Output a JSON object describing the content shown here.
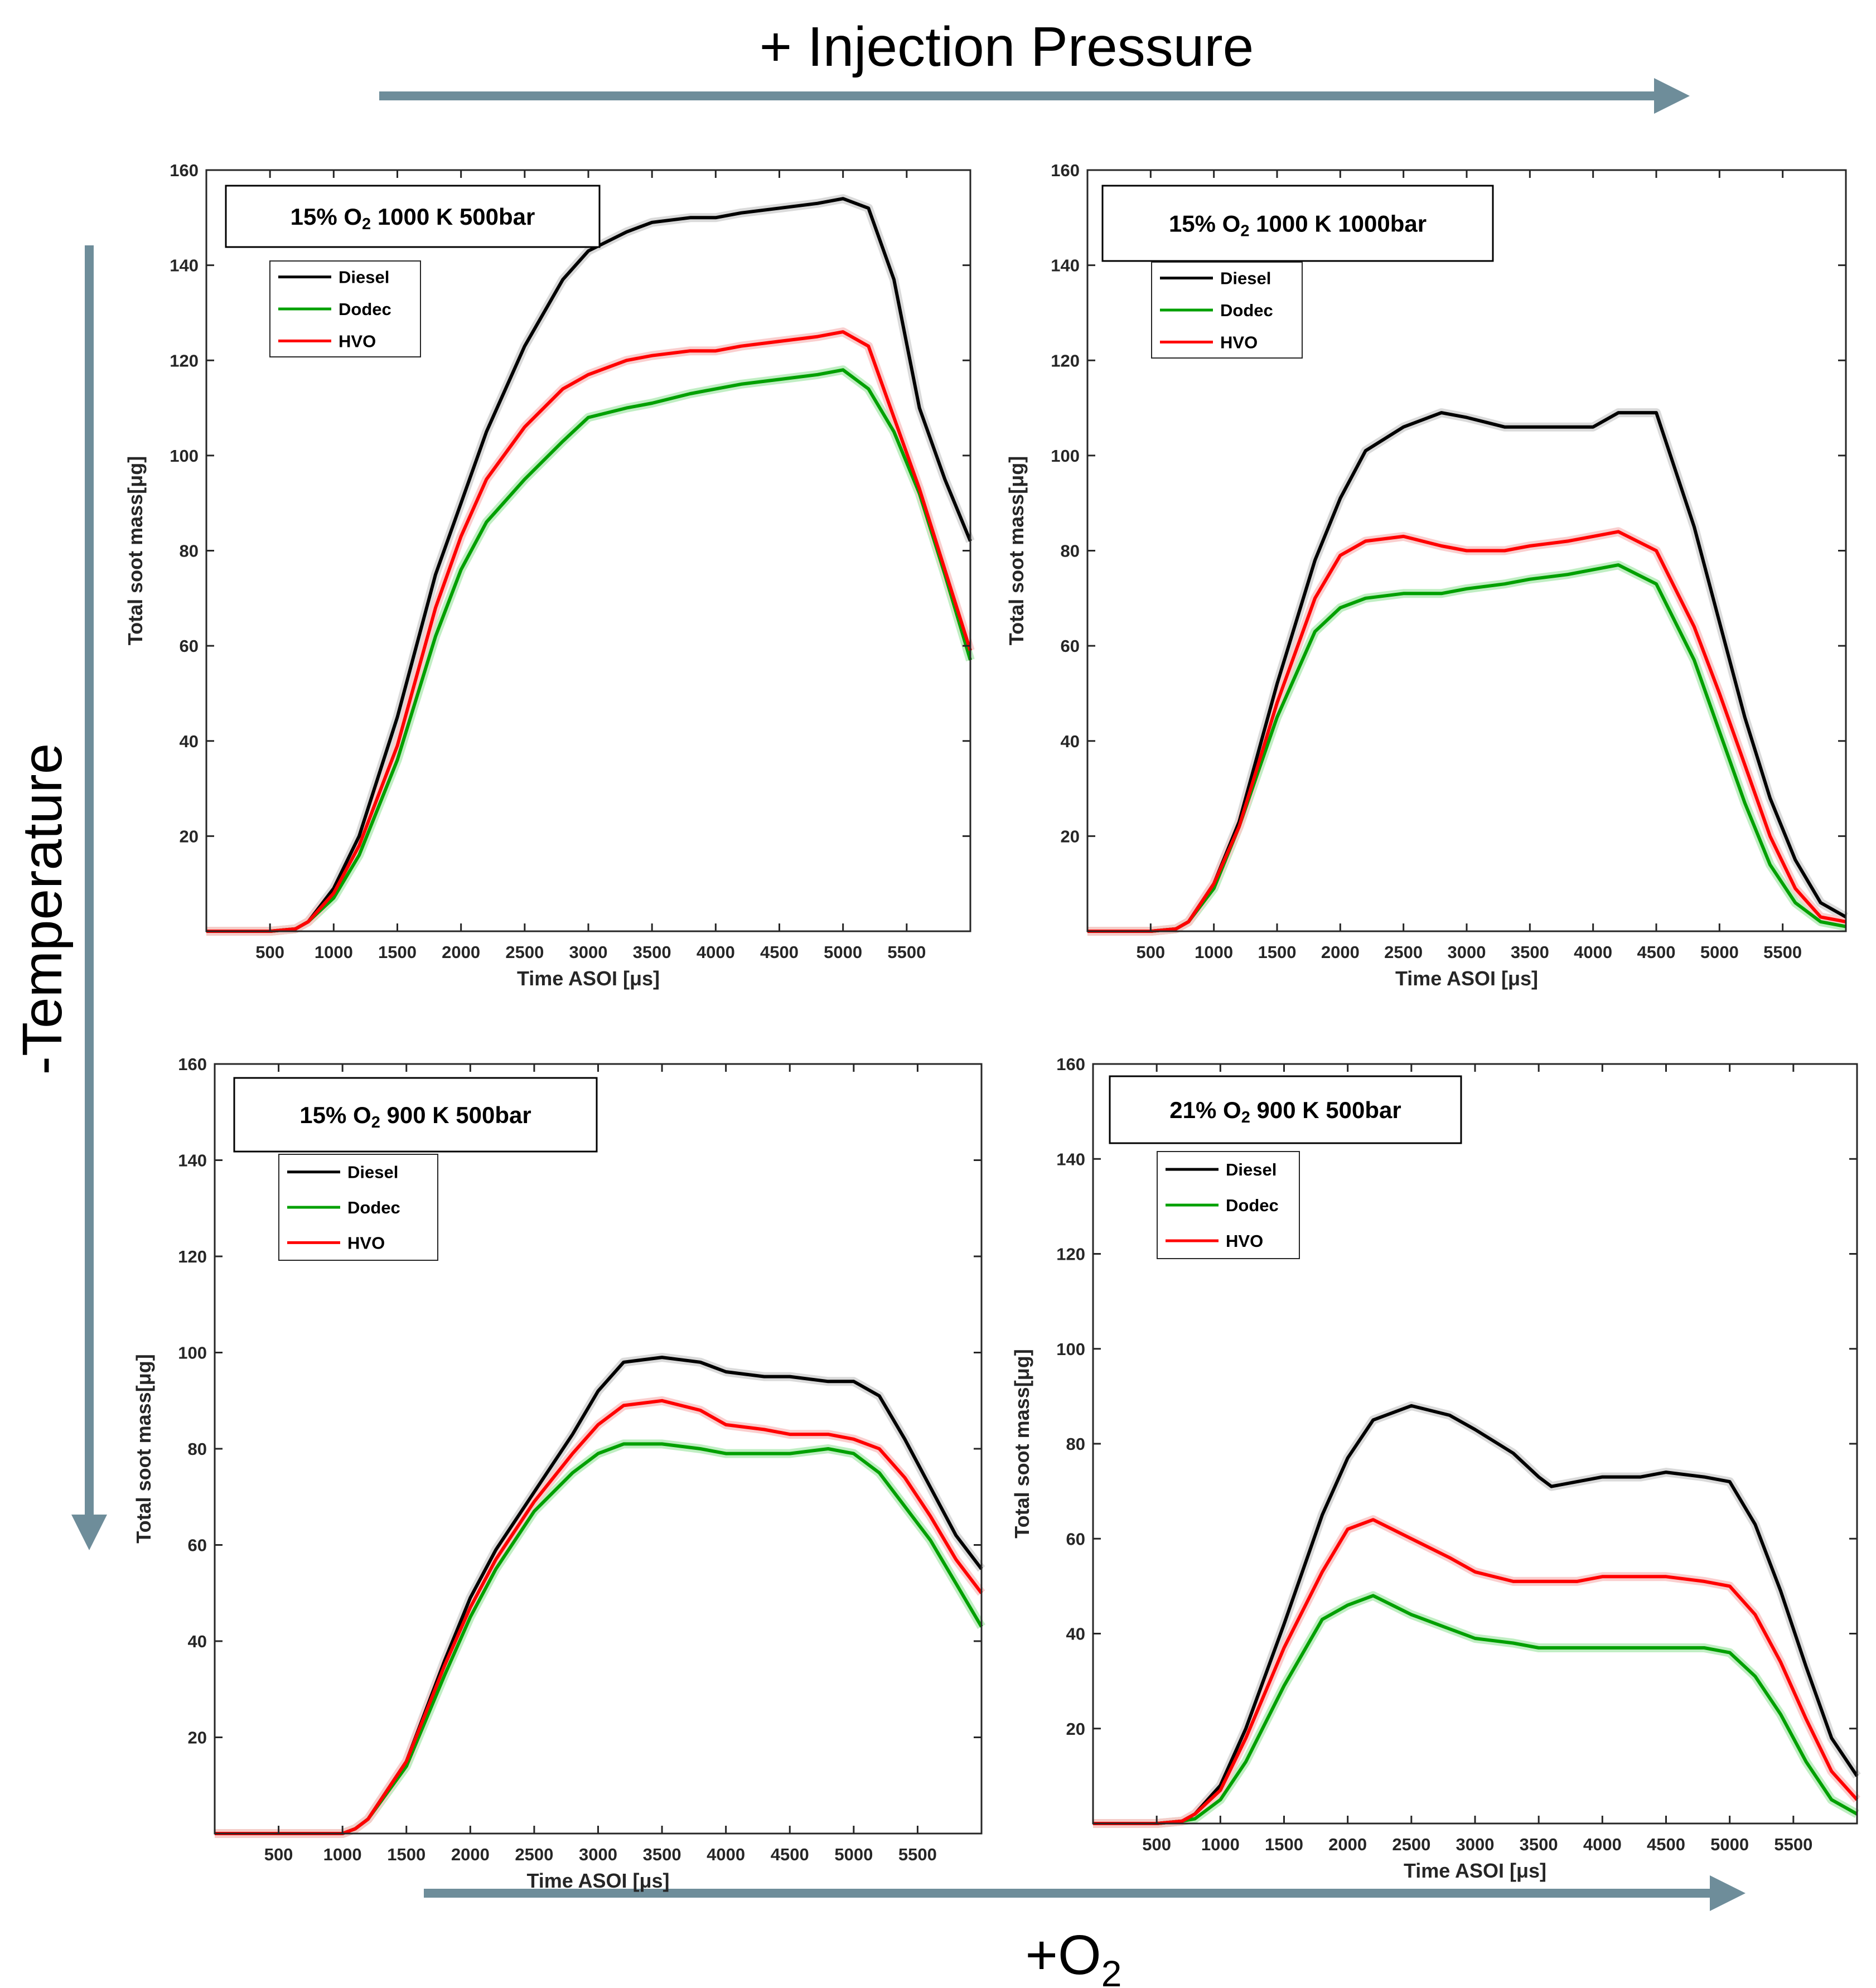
{
  "figure": {
    "top_label": "+ Injection Pressure",
    "left_label": "-Temperature",
    "bottom_label_prefix": "+O",
    "bottom_label_sub": "2",
    "arrow_color": "#6E8D9A"
  },
  "chart_data": [
    {
      "type": "line",
      "condition": {
        "pct": "15%",
        "o2_main": "O",
        "o2_sub": "2",
        "rest": "1000 K 500bar"
      },
      "xlabel": "Time ASOI [μs]",
      "ylabel": "Total soot mass[μg]",
      "xlim": [
        0,
        6000
      ],
      "ylim": [
        0,
        160
      ],
      "xticks": [
        500,
        1000,
        1500,
        2000,
        2500,
        3000,
        3500,
        4000,
        4500,
        5000,
        5500
      ],
      "yticks": [
        20,
        40,
        60,
        80,
        100,
        120,
        140,
        160
      ],
      "legend": [
        "Diesel",
        "Dodec",
        "HVO"
      ],
      "series": [
        {
          "name": "Diesel",
          "color": "#000000",
          "x": [
            0,
            500,
            700,
            800,
            1000,
            1200,
            1500,
            1800,
            2000,
            2200,
            2500,
            2800,
            3000,
            3300,
            3500,
            3800,
            4000,
            4200,
            4500,
            4800,
            5000,
            5200,
            5400,
            5600,
            5800,
            6000
          ],
          "y": [
            0,
            0,
            0.5,
            2,
            9,
            20,
            45,
            75,
            90,
            105,
            123,
            137,
            143,
            147,
            149,
            150,
            150,
            151,
            152,
            153,
            154,
            152,
            137,
            110,
            95,
            82
          ]
        },
        {
          "name": "Dodec",
          "color": "#00A000",
          "x": [
            0,
            500,
            700,
            800,
            1000,
            1200,
            1500,
            1800,
            2000,
            2200,
            2500,
            2800,
            3000,
            3300,
            3500,
            3800,
            4000,
            4200,
            4500,
            4800,
            5000,
            5200,
            5400,
            5600,
            5800,
            6000
          ],
          "y": [
            0,
            0,
            0.5,
            2,
            7,
            16,
            36,
            62,
            76,
            86,
            95,
            103,
            108,
            110,
            111,
            113,
            114,
            115,
            116,
            117,
            118,
            114,
            105,
            92,
            75,
            57
          ]
        },
        {
          "name": "HVO",
          "color": "#FF0000",
          "x": [
            0,
            500,
            700,
            800,
            1000,
            1200,
            1500,
            1800,
            2000,
            2200,
            2500,
            2800,
            3000,
            3300,
            3500,
            3800,
            4000,
            4200,
            4500,
            4800,
            5000,
            5200,
            5400,
            5600,
            5800,
            6000
          ],
          "y": [
            0,
            0,
            0.5,
            2,
            8,
            18,
            39,
            68,
            83,
            95,
            106,
            114,
            117,
            120,
            121,
            122,
            122,
            123,
            124,
            125,
            126,
            123,
            108,
            93,
            76,
            59
          ]
        }
      ]
    },
    {
      "type": "line",
      "condition": {
        "pct": "15%",
        "o2_main": "O",
        "o2_sub": "2",
        "rest": "1000 K 1000bar"
      },
      "xlabel": "Time ASOI [μs]",
      "ylabel": "Total soot mass[μg]",
      "xlim": [
        0,
        6000
      ],
      "ylim": [
        0,
        160
      ],
      "xticks": [
        500,
        1000,
        1500,
        2000,
        2500,
        3000,
        3500,
        4000,
        4500,
        5000,
        5500
      ],
      "yticks": [
        20,
        40,
        60,
        80,
        100,
        120,
        140,
        160
      ],
      "legend": [
        "Diesel",
        "Dodec",
        "HVO"
      ],
      "series": [
        {
          "name": "Diesel",
          "color": "#000000",
          "x": [
            0,
            500,
            700,
            800,
            1000,
            1200,
            1500,
            1800,
            2000,
            2200,
            2500,
            2800,
            3000,
            3300,
            3500,
            3800,
            4000,
            4200,
            4500,
            4800,
            5000,
            5200,
            5400,
            5600,
            5800,
            6000
          ],
          "y": [
            0,
            0,
            0.5,
            2,
            10,
            23,
            52,
            78,
            91,
            101,
            106,
            109,
            108,
            106,
            106,
            106,
            106,
            109,
            109,
            85,
            65,
            45,
            28,
            15,
            6,
            3
          ]
        },
        {
          "name": "Dodec",
          "color": "#00A000",
          "x": [
            0,
            500,
            700,
            800,
            1000,
            1200,
            1500,
            1800,
            2000,
            2200,
            2500,
            2800,
            3000,
            3300,
            3500,
            3800,
            4000,
            4200,
            4500,
            4800,
            5000,
            5200,
            5400,
            5600,
            5800,
            6000
          ],
          "y": [
            0,
            0,
            0.5,
            2,
            9,
            22,
            45,
            63,
            68,
            70,
            71,
            71,
            72,
            73,
            74,
            75,
            76,
            77,
            73,
            57,
            42,
            27,
            14,
            6,
            2,
            1
          ]
        },
        {
          "name": "HVO",
          "color": "#FF0000",
          "x": [
            0,
            500,
            700,
            800,
            1000,
            1200,
            1500,
            1800,
            2000,
            2200,
            2500,
            2800,
            3000,
            3300,
            3500,
            3800,
            4000,
            4200,
            4500,
            4800,
            5000,
            5200,
            5400,
            5600,
            5800,
            6000
          ],
          "y": [
            0,
            0,
            0.5,
            2,
            10,
            22,
            48,
            70,
            79,
            82,
            83,
            81,
            80,
            80,
            81,
            82,
            83,
            84,
            80,
            64,
            50,
            35,
            20,
            9,
            3,
            2
          ]
        }
      ]
    },
    {
      "type": "line",
      "condition": {
        "pct": "15%",
        "o2_main": "O",
        "o2_sub": "2",
        "rest": "900 K 500bar"
      },
      "xlabel": "Time ASOI [μs]",
      "ylabel": "Total soot mass[μg]",
      "xlim": [
        0,
        6000
      ],
      "ylim": [
        0,
        160
      ],
      "xticks": [
        500,
        1000,
        1500,
        2000,
        2500,
        3000,
        3500,
        4000,
        4500,
        5000,
        5500
      ],
      "yticks": [
        20,
        40,
        60,
        80,
        100,
        120,
        140,
        160
      ],
      "legend": [
        "Diesel",
        "Dodec",
        "HVO"
      ],
      "series": [
        {
          "name": "Diesel",
          "color": "#000000",
          "x": [
            0,
            500,
            1000,
            1100,
            1200,
            1500,
            1800,
            2000,
            2200,
            2500,
            2800,
            3000,
            3200,
            3500,
            3800,
            4000,
            4300,
            4500,
            4800,
            5000,
            5200,
            5400,
            5600,
            5800,
            6000
          ],
          "y": [
            0,
            0,
            0,
            1,
            3,
            15,
            36,
            49,
            59,
            71,
            83,
            92,
            98,
            99,
            98,
            96,
            95,
            95,
            94,
            94,
            91,
            82,
            72,
            62,
            55
          ]
        },
        {
          "name": "Dodec",
          "color": "#00A000",
          "x": [
            0,
            500,
            1000,
            1100,
            1200,
            1500,
            1800,
            2000,
            2200,
            2500,
            2800,
            3000,
            3200,
            3500,
            3800,
            4000,
            4300,
            4500,
            4800,
            5000,
            5200,
            5400,
            5600,
            5800,
            6000
          ],
          "y": [
            0,
            0,
            0,
            1,
            3,
            14,
            33,
            45,
            55,
            67,
            75,
            79,
            81,
            81,
            80,
            79,
            79,
            79,
            80,
            79,
            75,
            68,
            61,
            52,
            43
          ]
        },
        {
          "name": "HVO",
          "color": "#FF0000",
          "x": [
            0,
            500,
            1000,
            1100,
            1200,
            1500,
            1800,
            2000,
            2200,
            2500,
            2800,
            3000,
            3200,
            3500,
            3800,
            4000,
            4300,
            4500,
            4800,
            5000,
            5200,
            5400,
            5600,
            5800,
            6000
          ],
          "y": [
            0,
            0,
            0,
            1,
            3,
            15,
            35,
            47,
            57,
            69,
            79,
            85,
            89,
            90,
            88,
            85,
            84,
            83,
            83,
            82,
            80,
            74,
            66,
            57,
            50
          ]
        }
      ]
    },
    {
      "type": "line",
      "condition": {
        "pct": "21%",
        "o2_main": "O",
        "o2_sub": "2",
        "rest": "900 K 500bar"
      },
      "xlabel": "Time ASOI [μs]",
      "ylabel": "Total soot mass[μg]",
      "xlim": [
        0,
        6000
      ],
      "ylim": [
        0,
        160
      ],
      "xticks": [
        500,
        1000,
        1500,
        2000,
        2500,
        3000,
        3500,
        4000,
        4500,
        5000,
        5500
      ],
      "yticks": [
        20,
        40,
        60,
        80,
        100,
        120,
        140,
        160
      ],
      "legend": [
        "Diesel",
        "Dodec",
        "HVO"
      ],
      "series": [
        {
          "name": "Diesel",
          "color": "#000000",
          "x": [
            0,
            500,
            700,
            800,
            1000,
            1200,
            1500,
            1800,
            2000,
            2200,
            2500,
            2800,
            3000,
            3300,
            3500,
            3600,
            3800,
            4000,
            4300,
            4500,
            4800,
            5000,
            5200,
            5400,
            5600,
            5800,
            6000
          ],
          "y": [
            0,
            0,
            0.5,
            2,
            8,
            20,
            42,
            65,
            77,
            85,
            88,
            86,
            83,
            78,
            73,
            71,
            72,
            73,
            73,
            74,
            73,
            72,
            63,
            49,
            33,
            18,
            10
          ]
        },
        {
          "name": "Dodec",
          "color": "#00A000",
          "x": [
            0,
            500,
            700,
            800,
            1000,
            1200,
            1500,
            1800,
            2000,
            2200,
            2500,
            2800,
            3000,
            3300,
            3500,
            3600,
            3800,
            4000,
            4300,
            4500,
            4800,
            5000,
            5200,
            5400,
            5600,
            5800,
            6000
          ],
          "y": [
            0,
            0,
            0.5,
            1,
            5,
            13,
            29,
            43,
            46,
            48,
            44,
            41,
            39,
            38,
            37,
            37,
            37,
            37,
            37,
            37,
            37,
            36,
            31,
            23,
            13,
            5,
            2
          ]
        },
        {
          "name": "HVO",
          "color": "#FF0000",
          "x": [
            0,
            500,
            700,
            800,
            1000,
            1200,
            1500,
            1800,
            2000,
            2200,
            2500,
            2800,
            3000,
            3300,
            3500,
            3600,
            3800,
            4000,
            4300,
            4500,
            4800,
            5000,
            5200,
            5400,
            5600,
            5800,
            6000
          ],
          "y": [
            0,
            0,
            0.5,
            2,
            7,
            18,
            37,
            53,
            62,
            64,
            60,
            56,
            53,
            51,
            51,
            51,
            51,
            52,
            52,
            52,
            51,
            50,
            44,
            34,
            22,
            11,
            5
          ]
        }
      ]
    }
  ]
}
